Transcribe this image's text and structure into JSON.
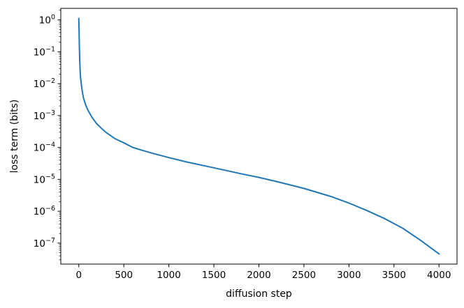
{
  "chart_data": {
    "type": "line",
    "xlabel": "diffusion step",
    "ylabel": "loss term (bits)",
    "yscale": "log",
    "xlim": [
      -200,
      4200
    ],
    "ylim": [
      2.2e-08,
      2.3
    ],
    "x_ticks": [
      0,
      500,
      1000,
      1500,
      2000,
      2500,
      3000,
      3500,
      4000
    ],
    "y_ticks": [
      {
        "value": 1,
        "base": "10",
        "exp": "0"
      },
      {
        "value": 0.1,
        "base": "10",
        "exp": "−1"
      },
      {
        "value": 0.01,
        "base": "10",
        "exp": "−2"
      },
      {
        "value": 0.001,
        "base": "10",
        "exp": "−3"
      },
      {
        "value": 0.0001,
        "base": "10",
        "exp": "−4"
      },
      {
        "value": 1e-05,
        "base": "10",
        "exp": "−5"
      },
      {
        "value": 1e-06,
        "base": "10",
        "exp": "−6"
      },
      {
        "value": 1e-07,
        "base": "10",
        "exp": "−7"
      }
    ],
    "grid": false,
    "series": [
      {
        "color": "#1f77b4",
        "x": [
          0,
          3,
          6,
          10,
          15,
          20,
          30,
          40,
          50,
          75,
          100,
          150,
          200,
          250,
          300,
          400,
          500,
          600,
          700,
          800,
          1000,
          1200,
          1500,
          1800,
          2000,
          2200,
          2500,
          2800,
          3000,
          3200,
          3400,
          3600,
          3800,
          4000
        ],
        "y": [
          1.1,
          0.5,
          0.15,
          0.055,
          0.025,
          0.015,
          0.0085,
          0.0055,
          0.0037,
          0.0022,
          0.0015,
          0.00085,
          0.00055,
          0.0004,
          0.0003,
          0.00019,
          0.00014,
          0.0001,
          8.2e-05,
          6.8e-05,
          4.8e-05,
          3.5e-05,
          2.3e-05,
          1.5e-05,
          1.15e-05,
          8.5e-06,
          5.2e-06,
          2.9e-06,
          1.8e-06,
          1.05e-06,
          5.8e-07,
          2.9e-07,
          1.2e-07,
          4.6e-08
        ]
      }
    ]
  }
}
